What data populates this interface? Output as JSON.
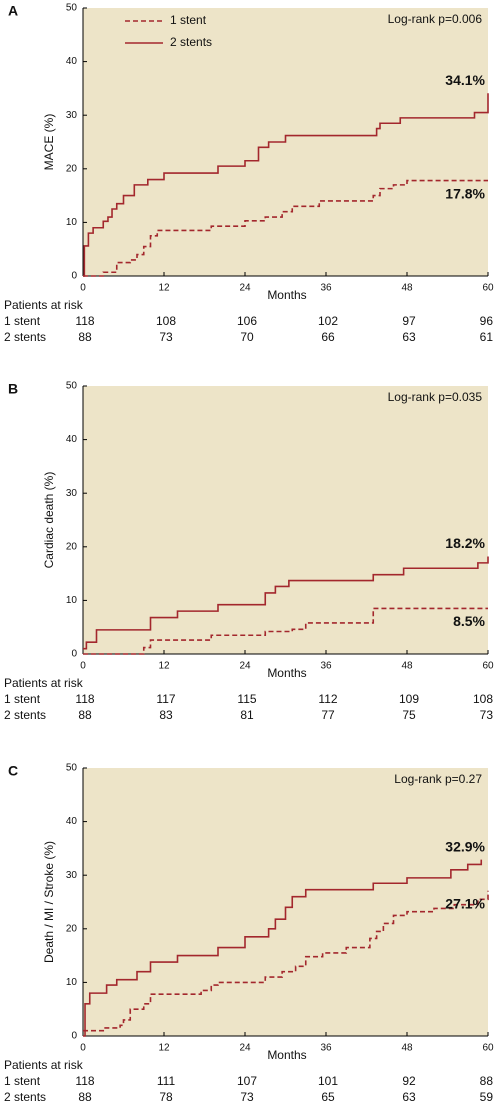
{
  "chart_data": [
    {
      "type": "step",
      "panel": "A",
      "ylabel": "MACE (%)",
      "xlabel": "Months",
      "annotation": "Log-rank p=0.006",
      "background": "#ede4c8",
      "legend": true,
      "risk_title": "Patients at risk",
      "xlim": [
        0,
        60
      ],
      "xticks": [
        0,
        12,
        24,
        36,
        48,
        60
      ],
      "ylim": [
        0,
        50
      ],
      "yticks": [
        0,
        10,
        20,
        30,
        40,
        50
      ],
      "series": [
        {
          "name": "1 stent",
          "color": "#a3272d",
          "dashed": true,
          "end_label": "17.8%",
          "x": [
            0,
            3,
            5,
            7,
            8,
            9,
            10,
            11,
            19,
            24,
            27,
            29.5,
            31,
            35,
            43,
            44,
            46,
            48,
            60
          ],
          "values": [
            0,
            0.7,
            2.5,
            3,
            4,
            5.5,
            7.5,
            8.5,
            9.3,
            10.3,
            11,
            12,
            13,
            14,
            15,
            16.3,
            17,
            17.8,
            17.8
          ],
          "at_risk": [
            118,
            108,
            106,
            102,
            97,
            96
          ]
        },
        {
          "name": "2 stents",
          "color": "#a3272d",
          "dashed": false,
          "end_label": "34.1%",
          "x": [
            0,
            0.2,
            0.8,
            1.5,
            3,
            3.7,
            4.3,
            5,
            6,
            7.6,
            9.6,
            12,
            20,
            24,
            26,
            27.5,
            30,
            43.5,
            44,
            47,
            58,
            60
          ],
          "values": [
            0,
            5.6,
            8,
            9,
            10.2,
            11,
            12.5,
            13.5,
            15,
            17,
            18,
            19.2,
            20.5,
            21.5,
            24,
            25,
            26.2,
            27.5,
            28.5,
            29.5,
            30.5,
            34.1
          ],
          "at_risk": [
            88,
            73,
            70,
            66,
            63,
            61
          ]
        }
      ]
    },
    {
      "type": "step",
      "panel": "B",
      "ylabel": "Cardiac death (%)",
      "xlabel": "Months",
      "annotation": "Log-rank p=0.035",
      "background": "#ede4c8",
      "legend": false,
      "risk_title": "Patients at risk",
      "xlim": [
        0,
        60
      ],
      "xticks": [
        0,
        12,
        24,
        36,
        48,
        60
      ],
      "ylim": [
        0,
        50
      ],
      "yticks": [
        0,
        10,
        20,
        30,
        40,
        50
      ],
      "series": [
        {
          "name": "1 stent",
          "color": "#a3272d",
          "dashed": true,
          "end_label": "8.5%",
          "x": [
            0,
            9,
            10,
            19,
            27,
            31,
            33,
            43,
            60
          ],
          "values": [
            0,
            1.2,
            2.6,
            3.5,
            4.2,
            4.6,
            5.8,
            8.5,
            8.5
          ],
          "at_risk": [
            118,
            117,
            115,
            112,
            109,
            108
          ]
        },
        {
          "name": "2 stents",
          "color": "#a3272d",
          "dashed": false,
          "end_label": "18.2%",
          "x": [
            0,
            0.5,
            2,
            10,
            14,
            20,
            27,
            28.5,
            30.5,
            43,
            47.5,
            58.5,
            60
          ],
          "values": [
            1,
            2.2,
            4.5,
            6.8,
            8,
            9.2,
            11.4,
            12.6,
            13.7,
            14.8,
            16,
            17,
            18.2
          ],
          "at_risk": [
            88,
            83,
            81,
            77,
            75,
            73
          ]
        }
      ]
    },
    {
      "type": "step",
      "panel": "C",
      "ylabel": "Death / MI / Stroke (%)",
      "xlabel": "Months",
      "annotation": "Log-rank p=0.27",
      "background": "#ede4c8",
      "legend": false,
      "risk_title": "Patients at risk",
      "xlim": [
        0,
        60
      ],
      "xticks": [
        0,
        12,
        24,
        36,
        48,
        60
      ],
      "ylim": [
        0,
        50
      ],
      "yticks": [
        0,
        10,
        20,
        30,
        40,
        50
      ],
      "series": [
        {
          "name": "1 stent",
          "color": "#a3272d",
          "dashed": true,
          "end_label": "27.1%",
          "x": [
            0,
            3,
            5.5,
            6,
            7,
            9,
            10,
            17.5,
            19,
            20,
            27,
            29.5,
            31.5,
            33,
            35.5,
            39,
            42.5,
            43.5,
            44.5,
            46,
            48,
            52,
            55,
            58.5,
            60
          ],
          "values": [
            1,
            1.5,
            2,
            3,
            5,
            6,
            7.8,
            8.5,
            9.5,
            10,
            11,
            12,
            13,
            14.8,
            15.5,
            16.5,
            18.2,
            19.5,
            21,
            22.5,
            23.2,
            23.8,
            24.5,
            25.5,
            27.1
          ],
          "at_risk": [
            118,
            111,
            107,
            101,
            92,
            88
          ]
        },
        {
          "name": "2 stents",
          "color": "#a3272d",
          "dashed": false,
          "end_label": "32.9%",
          "x": [
            0,
            0.3,
            1,
            3.5,
            5,
            8,
            10,
            14,
            20,
            24,
            27.5,
            28.5,
            30,
            31,
            33,
            43,
            48,
            54.5,
            57,
            59
          ],
          "values": [
            0,
            6,
            8,
            9.5,
            10.5,
            12,
            13.8,
            15,
            16.5,
            18.5,
            20,
            21.8,
            24,
            26,
            27.3,
            28.5,
            29.5,
            31,
            32,
            32.9
          ],
          "at_risk": [
            88,
            78,
            73,
            65,
            63,
            59
          ]
        }
      ]
    }
  ]
}
